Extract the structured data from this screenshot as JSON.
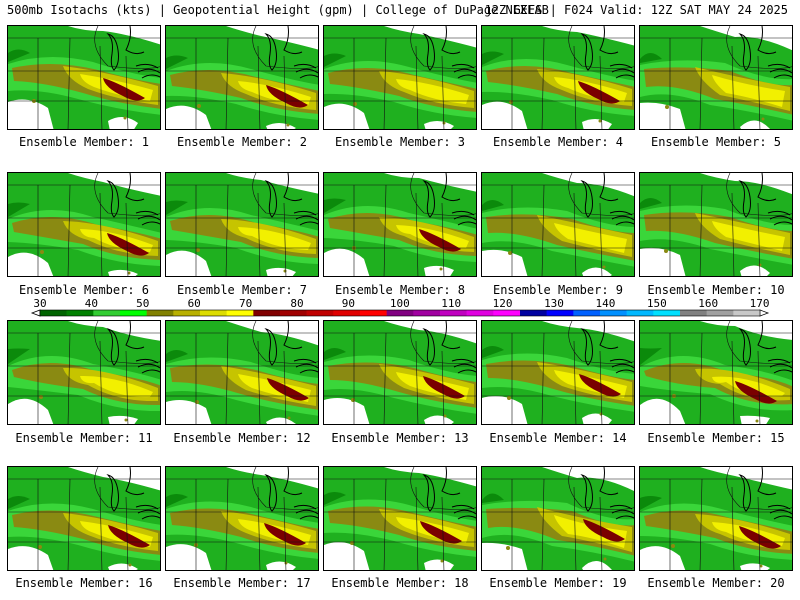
{
  "header": {
    "left": "500mb Isotachs (kts) | Geopotential Height (gpm) | College of DuPage NEXLAB",
    "right": "12Z GEFS | F024 Valid: 12Z SAT MAY 24 2025"
  },
  "members": [
    {
      "label": "Ensemble Member: 1",
      "core": true
    },
    {
      "label": "Ensemble Member: 2",
      "core": true
    },
    {
      "label": "Ensemble Member: 3",
      "core": false
    },
    {
      "label": "Ensemble Member: 4",
      "core": true
    },
    {
      "label": "Ensemble Member: 5",
      "core": false
    },
    {
      "label": "Ensemble Member: 6",
      "core": true
    },
    {
      "label": "Ensemble Member: 7",
      "core": false
    },
    {
      "label": "Ensemble Member: 8",
      "core": true
    },
    {
      "label": "Ensemble Member: 9",
      "core": false
    },
    {
      "label": "Ensemble Member: 10",
      "core": false
    },
    {
      "label": "Ensemble Member: 11",
      "core": false
    },
    {
      "label": "Ensemble Member: 12",
      "core": true
    },
    {
      "label": "Ensemble Member: 13",
      "core": true
    },
    {
      "label": "Ensemble Member: 14",
      "core": true
    },
    {
      "label": "Ensemble Member: 15",
      "core": true
    },
    {
      "label": "Ensemble Member: 16",
      "core": true
    },
    {
      "label": "Ensemble Member: 17",
      "core": true
    },
    {
      "label": "Ensemble Member: 18",
      "core": true
    },
    {
      "label": "Ensemble Member: 19",
      "core": true
    },
    {
      "label": "Ensemble Member: 20",
      "core": true
    }
  ],
  "colorbar": {
    "labels": [
      "30",
      "40",
      "50",
      "60",
      "70",
      "80",
      "90",
      "100",
      "110",
      "120",
      "130",
      "140",
      "150",
      "160",
      "170"
    ],
    "colors": [
      "#006400",
      "#008000",
      "#32cd32",
      "#00ff00",
      "#808000",
      "#b8b000",
      "#dddd00",
      "#ffff00",
      "#800000",
      "#a00000",
      "#c00000",
      "#e00000",
      "#ff0000",
      "#800080",
      "#a000a0",
      "#c000c0",
      "#e000e0",
      "#ff00ff",
      "#0000a0",
      "#0000ff",
      "#0060ff",
      "#0090ff",
      "#00b8ff",
      "#00e0ff",
      "#808080",
      "#a0a0a0",
      "#c8c8c8"
    ]
  },
  "field_colors": {
    "g_dark": "#0b8a0b",
    "g_mid": "#1fb01f",
    "g_light": "#3ad63a",
    "olive": "#8a8a12",
    "yellow_dark": "#c6c400",
    "yellow": "#f2f000",
    "core": "#7a0000"
  }
}
